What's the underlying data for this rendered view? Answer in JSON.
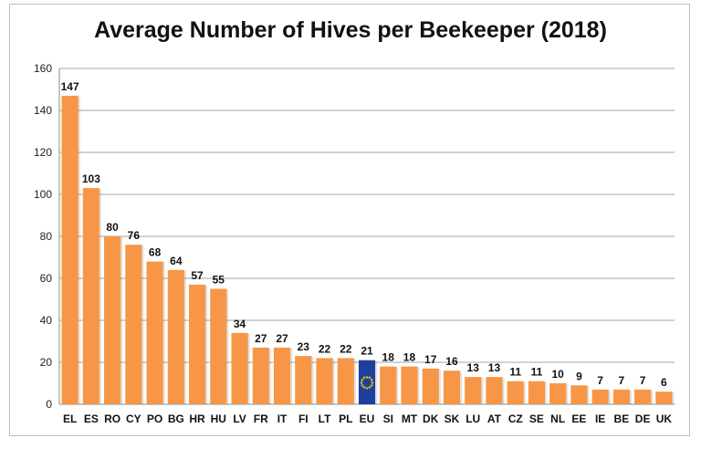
{
  "chart_data": {
    "type": "bar",
    "title": "Average Number of Hives per Beekeeper (2018)",
    "xlabel": "",
    "ylabel": "",
    "ylim": [
      0,
      160
    ],
    "yticks": [
      0,
      20,
      40,
      60,
      80,
      100,
      120,
      140,
      160
    ],
    "grid": true,
    "legend": "none",
    "categories": [
      "EL",
      "ES",
      "RO",
      "CY",
      "PO",
      "BG",
      "HR",
      "HU",
      "LV",
      "FR",
      "IT",
      "FI",
      "LT",
      "PL",
      "EU",
      "SI",
      "MT",
      "DK",
      "SK",
      "LU",
      "AT",
      "CZ",
      "SE",
      "NL",
      "EE",
      "IE",
      "BE",
      "DE",
      "UK"
    ],
    "values": [
      147,
      103,
      80,
      76,
      68,
      64,
      57,
      55,
      34,
      27,
      27,
      23,
      22,
      22,
      21,
      18,
      18,
      17,
      16,
      13,
      13,
      11,
      11,
      10,
      9,
      7,
      7,
      7,
      6
    ],
    "highlight_category": "EU",
    "colors": {
      "bar": "#f79646",
      "highlight": "#1f3f9c",
      "star": "#f5d000",
      "grid": "#a6a6a6"
    }
  }
}
